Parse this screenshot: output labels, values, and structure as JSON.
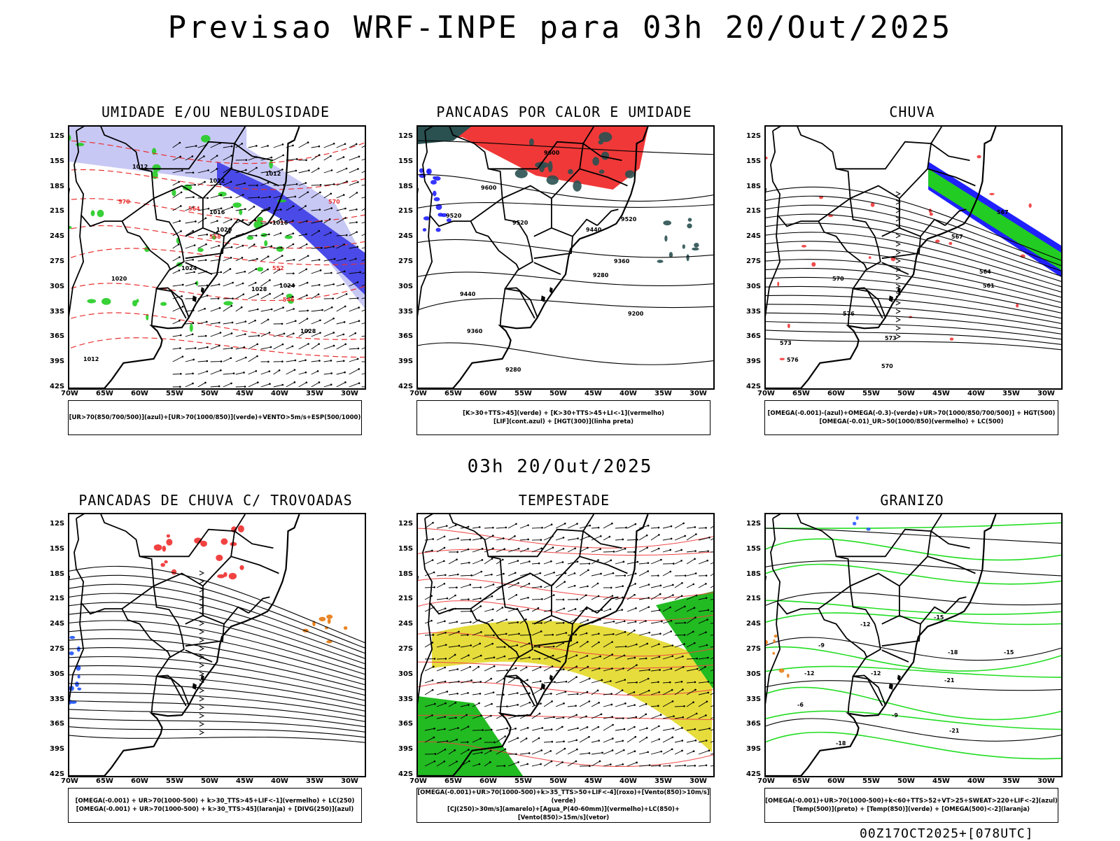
{
  "title": "Previsao WRF-INPE  para 03h 20/Out/2025",
  "mid_title": "03h 20/Out/2025",
  "footer": "00Z17OCT2025+[078UTC]",
  "lat_ticks": [
    "12S",
    "15S",
    "18S",
    "21S",
    "24S",
    "27S",
    "30S",
    "33S",
    "36S",
    "39S",
    "42S"
  ],
  "lon_ticks": [
    "70W",
    "65W",
    "60W",
    "55W",
    "50W",
    "45W",
    "40W",
    "35W",
    "30W"
  ],
  "panels": [
    {
      "title": "UMIDADE E/OU NEBULOSIDADE",
      "legend": [
        "[UR>70(850/700/500)](azul)+[UR>70(1000/850)](verde)+VENTO>5m/s+ESP(500/1000)"
      ],
      "labels": [
        "1012",
        "1012",
        "1012",
        "1016",
        "1020",
        "1024",
        "1028",
        "1020",
        "1016",
        "1024",
        "1028",
        "1012",
        "570",
        "564",
        "558",
        "552",
        "546",
        "570"
      ]
    },
    {
      "title": "PANCADAS POR CALOR E UMIDADE",
      "legend": [
        "[K>30+TTS>45](verde) + [K>30+TTS>45+LI<-1](vermelho)",
        "[LIF](cont.azul) + [HGT(300)](linha preta)"
      ],
      "labels": [
        "9600",
        "9600",
        "9520",
        "9520",
        "9520",
        "9440",
        "9440",
        "9360",
        "9360",
        "9280",
        "9280",
        "9200"
      ]
    },
    {
      "title": "CHUVA",
      "legend": [
        "[OMEGA(-0.001)-(azul)+OMEGA(-0.3)-(verde)+UR>70(1000/850/700/500)] + HGT(500)",
        "[OMEGA(-0.01)_UR>50(1000/850)(vermelho) + LC(500)"
      ],
      "labels": [
        "576",
        "573",
        "570",
        "567",
        "564",
        "561",
        "576",
        "573",
        "570",
        "567"
      ]
    },
    {
      "title": "PANCADAS DE CHUVA C/ TROVOADAS",
      "legend": [
        "[OMEGA(-0.001) + UR>70(1000-500) + k>30_TTS>45+LIF<-1](vermelho) + LC(250)",
        "[OMEGA(-0.001) + UR>70(1000-500) + k>30_TTS>45](laranja) + [DIVG(250)](azul)"
      ],
      "labels": []
    },
    {
      "title": "TEMPESTADE",
      "legend": [
        "[OMEGA(-0.001)+UR>70(1000-500)+k>35_TTS>50+LIF<-4](roxo)+[Vento(850)>10m/s](verde)",
        "[CJ(250)>30m/s](amarelo)+[Agua_P(40-60mm)](vermelho)+LC(850)+[Vento(850)>15m/s](vetor)"
      ],
      "labels": []
    },
    {
      "title": "GRANIZO",
      "legend": [
        "[OMEGA(-0.001)+UR>70(1000-500)+k<60+TTS>52+VT>25+SWEAT>220+LIF<-2](azul)",
        "[Temp(500)](preto) + [Temp(850)](verde) + [OMEGA(500)<-2](laranja)"
      ],
      "labels": [
        "-9",
        "-6",
        "-12",
        "-18",
        "-21",
        "-15",
        "-12",
        "-21",
        "-18",
        "-15",
        "-12",
        "-9"
      ]
    }
  ]
}
